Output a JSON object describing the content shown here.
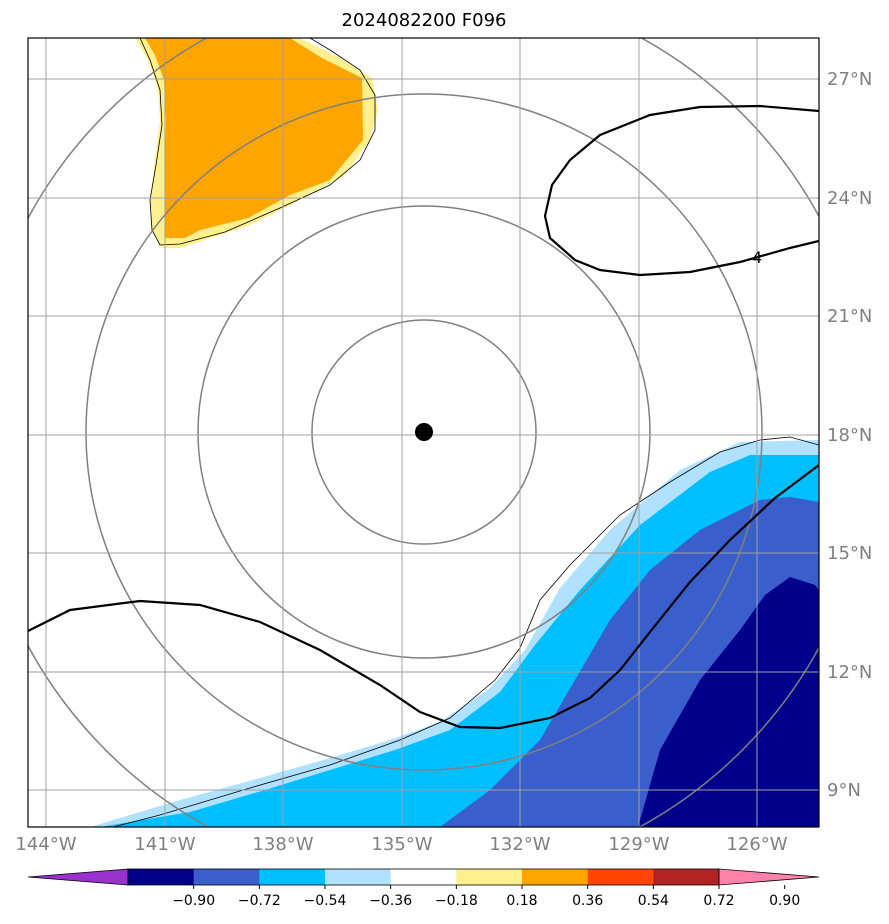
{
  "title": "2024082200 F096",
  "map": {
    "lon_labels": [
      "144°W",
      "141°W",
      "138°W",
      "135°W",
      "132°W",
      "129°W",
      "126°W"
    ],
    "lat_labels": [
      "27°N",
      "24°N",
      "21°N",
      "18°N",
      "15°N",
      "12°N",
      "9°N"
    ],
    "contour_label": "4",
    "center_marker": "storm-center"
  },
  "colorbar": {
    "colors": [
      "#9932cc",
      "#00008b",
      "#3a5fcd",
      "#00bfff",
      "#b0e2ff",
      "#ffffff",
      "#fff08f",
      "#ffa500",
      "#ff4500",
      "#b22222",
      "#ff82ab"
    ],
    "labels": [
      "−0.90",
      "−0.72",
      "−0.54",
      "−0.36",
      "−0.18",
      "0.18",
      "0.36",
      "0.54",
      "0.72",
      "0.90"
    ]
  }
}
